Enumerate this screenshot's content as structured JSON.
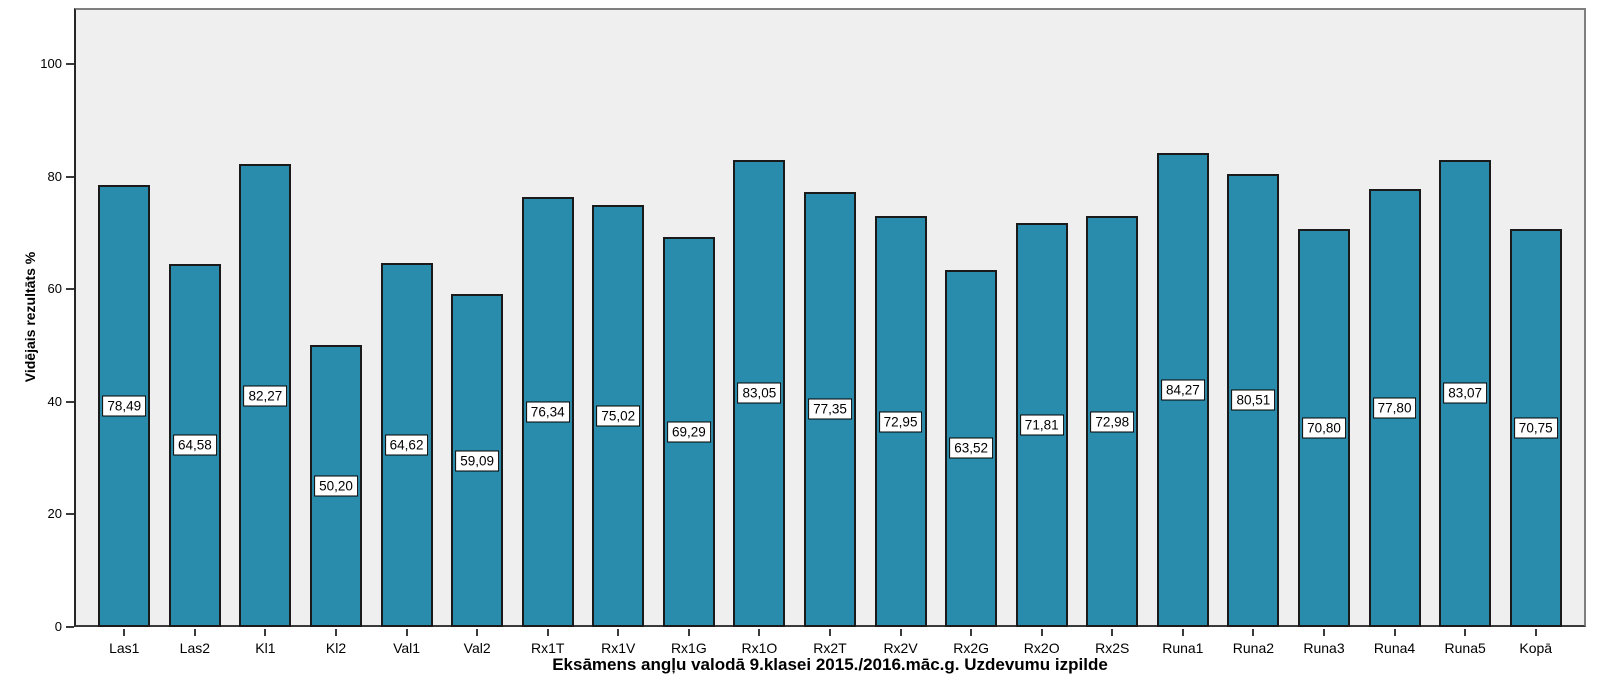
{
  "chart_data": {
    "type": "bar",
    "title": "",
    "xlabel": "Eksāmens angļu valodā 9.klasei 2015./2016.māc.g. Uzdevumu izpilde",
    "ylabel": "Vidējais rezultāts %",
    "categories": [
      "Las1",
      "Las2",
      "Kl1",
      "Kl2",
      "Val1",
      "Val2",
      "Rx1T",
      "Rx1V",
      "Rx1G",
      "Rx1O",
      "Rx2T",
      "Rx2V",
      "Rx2G",
      "Rx2O",
      "Rx2S",
      "Runa1",
      "Runa2",
      "Runa3",
      "Runa4",
      "Runa5",
      "Kopā"
    ],
    "values": [
      78.49,
      64.58,
      82.27,
      50.2,
      64.62,
      59.09,
      76.34,
      75.02,
      69.29,
      83.05,
      77.35,
      72.95,
      63.52,
      71.81,
      72.98,
      84.27,
      80.51,
      70.8,
      77.8,
      83.07,
      70.75
    ],
    "value_labels": [
      "78,49",
      "64,58",
      "82,27",
      "50,20",
      "64,62",
      "59,09",
      "76,34",
      "75,02",
      "69,29",
      "83,05",
      "77,35",
      "72,95",
      "63,52",
      "71,81",
      "72,98",
      "84,27",
      "80,51",
      "70,80",
      "77,80",
      "83,07",
      "70,75"
    ],
    "ylim": [
      0,
      110
    ],
    "yticks": [
      0,
      20,
      40,
      60,
      80,
      100
    ],
    "grid": false,
    "legend": null,
    "value_label_position": "middle",
    "colors": {
      "bar_fill": "#2A8CAD",
      "bar_border": "#1A1A1A",
      "plot_background": "#EFEFEF",
      "frame_border": "#7F7F7F",
      "axis_line": "#3A3A3A",
      "label_box_background": "#FFFFFF",
      "label_box_border": "#000000",
      "text": "#000000",
      "page_background": "#FFFFFF"
    }
  }
}
